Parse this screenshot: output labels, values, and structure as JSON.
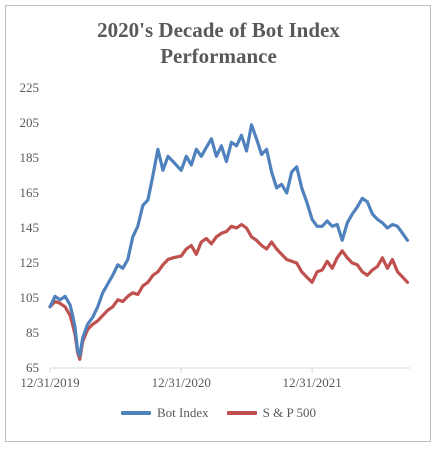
{
  "chart_data": {
    "type": "line",
    "title": "2020's Decade of Bot Index",
    "subtitle": "Performance",
    "xlabel": "",
    "ylabel": "",
    "ylim": [
      65,
      225
    ],
    "yticks": [
      65,
      85,
      105,
      125,
      145,
      165,
      185,
      205,
      225
    ],
    "xlim": [
      "2019-12-31",
      "2022-09-30"
    ],
    "xticks": [
      "12/31/2019",
      "12/31/2020",
      "12/31/2021"
    ],
    "grid": false,
    "legend": "bottom",
    "x": [
      "2019-12-31",
      "2020-01-14",
      "2020-01-28",
      "2020-02-11",
      "2020-02-25",
      "2020-03-03",
      "2020-03-10",
      "2020-03-17",
      "2020-03-23",
      "2020-03-31",
      "2020-04-14",
      "2020-04-28",
      "2020-05-12",
      "2020-05-26",
      "2020-06-09",
      "2020-06-23",
      "2020-07-07",
      "2020-07-21",
      "2020-08-04",
      "2020-08-18",
      "2020-09-01",
      "2020-09-15",
      "2020-09-29",
      "2020-10-13",
      "2020-10-27",
      "2020-11-10",
      "2020-11-24",
      "2020-12-08",
      "2020-12-31",
      "2021-01-14",
      "2021-01-28",
      "2021-02-11",
      "2021-02-25",
      "2021-03-11",
      "2021-03-25",
      "2021-04-08",
      "2021-04-22",
      "2021-05-06",
      "2021-05-20",
      "2021-06-03",
      "2021-06-17",
      "2021-07-01",
      "2021-07-15",
      "2021-07-29",
      "2021-08-12",
      "2021-08-26",
      "2021-09-09",
      "2021-09-23",
      "2021-10-07",
      "2021-10-21",
      "2021-11-04",
      "2021-11-18",
      "2021-12-02",
      "2021-12-16",
      "2021-12-31",
      "2022-01-14",
      "2022-01-28",
      "2022-02-11",
      "2022-02-25",
      "2022-03-11",
      "2022-03-25",
      "2022-04-08",
      "2022-04-22",
      "2022-05-06",
      "2022-05-20",
      "2022-06-03",
      "2022-06-17",
      "2022-07-01",
      "2022-07-15",
      "2022-07-29",
      "2022-08-12",
      "2022-08-26",
      "2022-09-09",
      "2022-09-23"
    ],
    "series": [
      {
        "name": "Bot Index",
        "color": "#4f81bd",
        "values": [
          100,
          106,
          104,
          106,
          101,
          95,
          88,
          75,
          72,
          82,
          90,
          94,
          100,
          108,
          113,
          118,
          124,
          122,
          127,
          140,
          146,
          158,
          161,
          175,
          190,
          178,
          186,
          183,
          178,
          186,
          181,
          190,
          186,
          191,
          196,
          186,
          192,
          183,
          194,
          192,
          198,
          189,
          204,
          196,
          187,
          190,
          177,
          168,
          170,
          165,
          177,
          180,
          168,
          160,
          150,
          146,
          146,
          149,
          146,
          147,
          138,
          148,
          153,
          157,
          162,
          160,
          153,
          150,
          148,
          145,
          147,
          146,
          142,
          138
        ]
      },
      {
        "name": "S & P 500",
        "color": "#c0504d",
        "values": [
          100,
          103,
          102,
          100,
          95,
          90,
          84,
          74,
          70,
          80,
          87,
          90,
          92,
          95,
          98,
          100,
          104,
          103,
          106,
          108,
          107,
          112,
          114,
          118,
          120,
          124,
          127,
          128,
          129,
          133,
          135,
          130,
          137,
          139,
          136,
          140,
          142,
          143,
          146,
          145,
          147,
          145,
          140,
          138,
          135,
          133,
          137,
          133,
          130,
          127,
          126,
          125,
          120,
          117,
          114,
          120,
          121,
          126,
          122,
          128,
          132,
          128,
          125,
          124,
          120,
          118,
          121,
          123,
          128,
          122,
          127,
          120,
          117,
          114
        ]
      }
    ]
  }
}
